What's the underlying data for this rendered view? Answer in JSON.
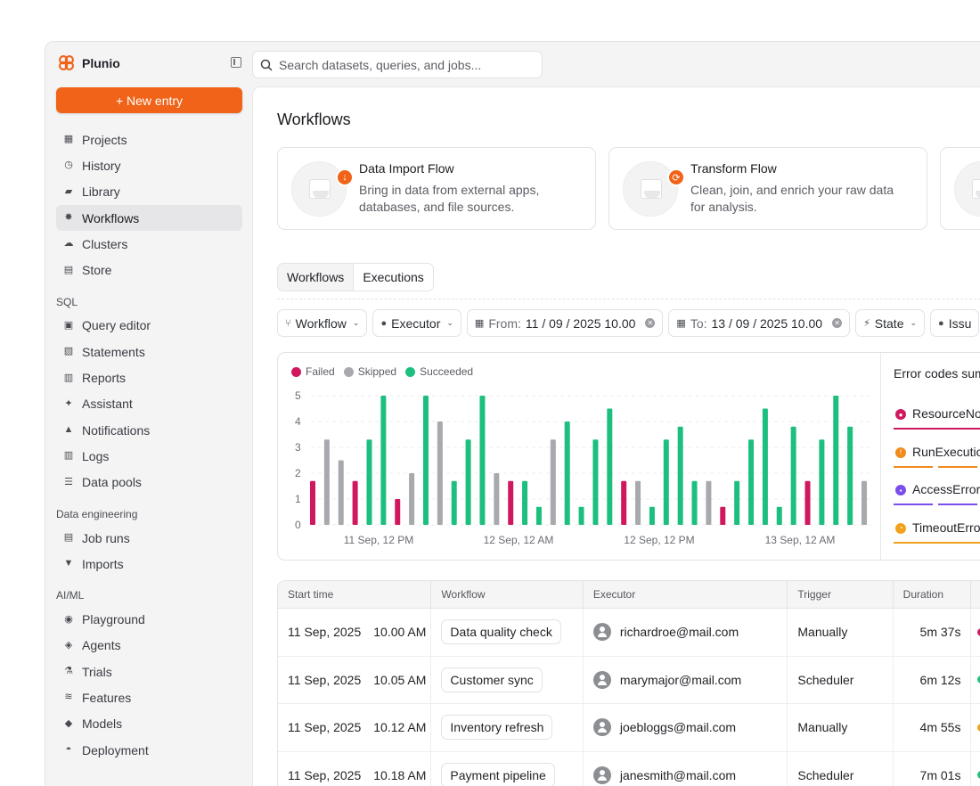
{
  "brand": {
    "name": "Plunio",
    "accent": "#f06318"
  },
  "sidebar": {
    "new_entry": "+ New entry",
    "items": [
      {
        "label": "Projects",
        "icon": "grid-icon"
      },
      {
        "label": "History",
        "icon": "clock-icon"
      },
      {
        "label": "Library",
        "icon": "book-icon"
      },
      {
        "label": "Workflows",
        "icon": "workflow-icon",
        "active": true
      },
      {
        "label": "Clusters",
        "icon": "cloud-icon"
      },
      {
        "label": "Store",
        "icon": "store-icon"
      }
    ],
    "sql_section": "SQL",
    "sql_items": [
      {
        "label": "Query editor",
        "icon": "code-icon"
      },
      {
        "label": "Statements",
        "icon": "file-icon"
      },
      {
        "label": "Reports",
        "icon": "report-icon"
      },
      {
        "label": "Assistant",
        "icon": "sparkle-icon"
      },
      {
        "label": "Notifications",
        "icon": "bell-icon"
      },
      {
        "label": "Logs",
        "icon": "bar-chart-icon"
      },
      {
        "label": "Data pools",
        "icon": "database-icon"
      }
    ],
    "de_section": "Data engineering",
    "de_items": [
      {
        "label": "Job runs",
        "icon": "list-icon"
      },
      {
        "label": "Imports",
        "icon": "download-icon"
      }
    ],
    "ml_section": "AI/ML",
    "ml_items": [
      {
        "label": "Playground",
        "icon": "playground-icon"
      },
      {
        "label": "Agents",
        "icon": "agent-icon"
      },
      {
        "label": "Trials",
        "icon": "flask-icon"
      },
      {
        "label": "Features",
        "icon": "layers-icon"
      },
      {
        "label": "Models",
        "icon": "cube-icon"
      },
      {
        "label": "Deployment",
        "icon": "rocket-icon"
      }
    ]
  },
  "search": {
    "placeholder": "Search datasets, queries, and jobs..."
  },
  "main": {
    "title": "Workflows",
    "cards": [
      {
        "title": "Data Import Flow",
        "desc": "Bring in data from external apps, databases, and file sources.",
        "badge": "↓"
      },
      {
        "title": "Transform Flow",
        "desc": "Clean, join, and enrich your raw data for analysis.",
        "badge": "⟳"
      }
    ],
    "tabs": [
      "Workflows",
      "Executions"
    ],
    "filters": {
      "workflow": "Workflow",
      "executor": "Executor",
      "from_label": "From:",
      "from_value": "11 / 09 / 2025 10.00",
      "to_label": "To:",
      "to_value": "13 / 09 / 2025 10.00",
      "state": "State",
      "issues": "Issu"
    }
  },
  "errors": {
    "title": "Error codes sum",
    "items": [
      {
        "label": "ResourceNo",
        "color": "#d0185f",
        "dashed": false
      },
      {
        "label": "RunExecutio",
        "color": "#f08a1c",
        "dashed": true
      },
      {
        "label": "AccessError",
        "color": "#7b4dea",
        "dashed": true
      },
      {
        "label": "TimeoutErro",
        "color": "#f0a21c",
        "dashed": false
      }
    ]
  },
  "chart_data": {
    "type": "bar",
    "legend": [
      {
        "name": "Failed",
        "color": "#d0185f"
      },
      {
        "name": "Skipped",
        "color": "#a8a9ad"
      },
      {
        "name": "Succeeded",
        "color": "#1dbf7f"
      }
    ],
    "ylim": [
      0,
      5
    ],
    "yticks": [
      "0",
      "1",
      "2",
      "3",
      "4",
      "5"
    ],
    "xticks": [
      "11 Sep, 12 PM",
      "12 Sep, 12 AM",
      "12 Sep, 12 PM",
      "13 Sep, 12 AM"
    ],
    "bars": [
      {
        "s": "Failed",
        "v": 1.7
      },
      {
        "s": "Skipped",
        "v": 3.3
      },
      {
        "s": "Skipped",
        "v": 2.5
      },
      {
        "s": "Failed",
        "v": 1.7
      },
      {
        "s": "Succeeded",
        "v": 3.3
      },
      {
        "s": "Succeeded",
        "v": 5.0
      },
      {
        "s": "Failed",
        "v": 1.0
      },
      {
        "s": "Skipped",
        "v": 2.0
      },
      {
        "s": "Succeeded",
        "v": 5.0
      },
      {
        "s": "Skipped",
        "v": 4.0
      },
      {
        "s": "Succeeded",
        "v": 1.7
      },
      {
        "s": "Succeeded",
        "v": 3.3
      },
      {
        "s": "Succeeded",
        "v": 5.0
      },
      {
        "s": "Skipped",
        "v": 2.0
      },
      {
        "s": "Failed",
        "v": 1.7
      },
      {
        "s": "Succeeded",
        "v": 1.7
      },
      {
        "s": "Succeeded",
        "v": 0.7
      },
      {
        "s": "Skipped",
        "v": 3.3
      },
      {
        "s": "Succeeded",
        "v": 4.0
      },
      {
        "s": "Succeeded",
        "v": 0.7
      },
      {
        "s": "Succeeded",
        "v": 3.3
      },
      {
        "s": "Succeeded",
        "v": 4.5
      },
      {
        "s": "Failed",
        "v": 1.7
      },
      {
        "s": "Skipped",
        "v": 1.7
      },
      {
        "s": "Succeeded",
        "v": 0.7
      },
      {
        "s": "Succeeded",
        "v": 3.3
      },
      {
        "s": "Succeeded",
        "v": 3.8
      },
      {
        "s": "Succeeded",
        "v": 1.7
      },
      {
        "s": "Skipped",
        "v": 1.7
      },
      {
        "s": "Failed",
        "v": 0.7
      },
      {
        "s": "Succeeded",
        "v": 1.7
      },
      {
        "s": "Succeeded",
        "v": 3.3
      },
      {
        "s": "Succeeded",
        "v": 4.5
      },
      {
        "s": "Succeeded",
        "v": 0.7
      },
      {
        "s": "Succeeded",
        "v": 3.8
      },
      {
        "s": "Failed",
        "v": 1.7
      },
      {
        "s": "Succeeded",
        "v": 3.3
      },
      {
        "s": "Succeeded",
        "v": 5.0
      },
      {
        "s": "Succeeded",
        "v": 3.8
      },
      {
        "s": "Skipped",
        "v": 1.7
      }
    ]
  },
  "table": {
    "columns": [
      "Start time",
      "Workflow",
      "Executor",
      "Trigger",
      "Duration",
      "S"
    ],
    "rows": [
      {
        "date": "11 Sep, 2025",
        "time": "10.00 AM",
        "workflow": "Data quality check",
        "executor": "richardroe@mail.com",
        "trigger": "Manually",
        "duration": "5m 37s",
        "status_color": "#d0185f"
      },
      {
        "date": "11 Sep, 2025",
        "time": "10.05 AM",
        "workflow": "Customer sync",
        "executor": "marymajor@mail.com",
        "trigger": "Scheduler",
        "duration": "6m 12s",
        "status_color": "#1dbf7f"
      },
      {
        "date": "11 Sep, 2025",
        "time": "10.12 AM",
        "workflow": "Inventory refresh",
        "executor": "joebloggs@mail.com",
        "trigger": "Manually",
        "duration": "4m 55s",
        "status_color": "#f0a21c"
      },
      {
        "date": "11 Sep, 2025",
        "time": "10.18 AM",
        "workflow": "Payment pipeline",
        "executor": "janesmith@mail.com",
        "trigger": "Scheduler",
        "duration": "7m 01s",
        "status_color": "#1dbf7f"
      }
    ]
  }
}
